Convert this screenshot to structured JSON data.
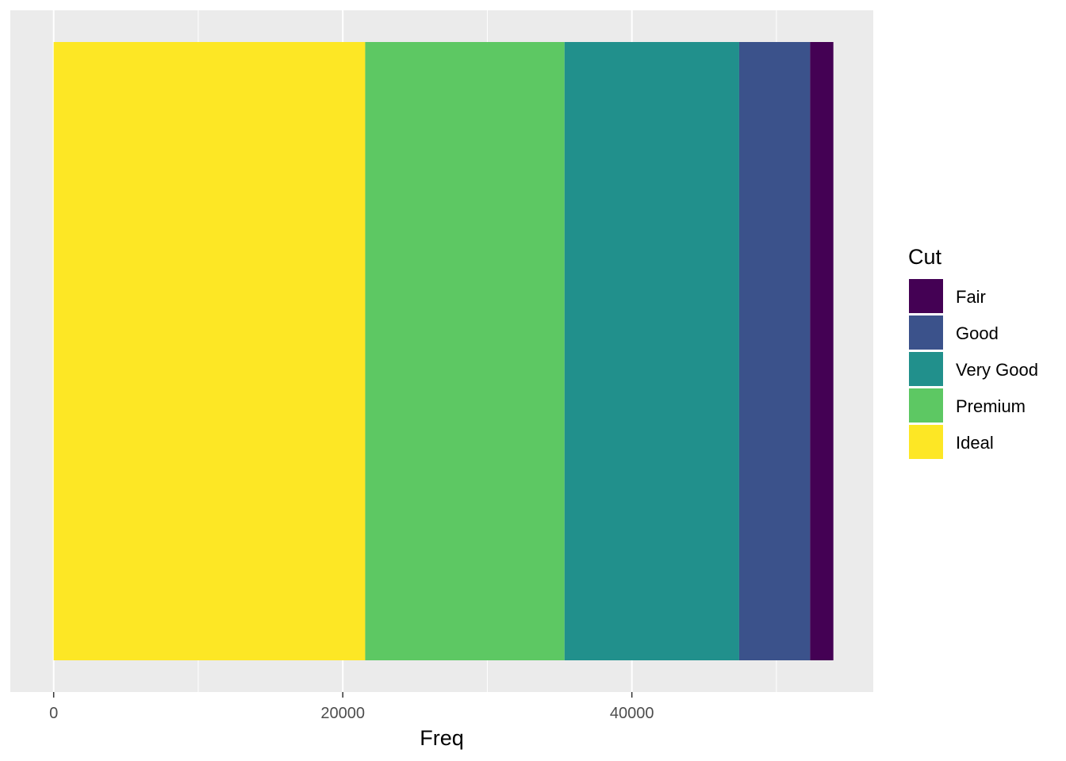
{
  "chart_data": {
    "type": "bar",
    "orientation": "horizontal-stacked",
    "xlabel": "Freq",
    "ylabel": "",
    "xlim": [
      -3000,
      56700
    ],
    "x_ticks": [
      0,
      20000,
      40000
    ],
    "x_tick_labels": [
      "0",
      "20000",
      "40000"
    ],
    "x_minor_ticks": [
      10000,
      30000,
      50000
    ],
    "grid": true,
    "legend": {
      "title": "Cut",
      "placement": "right"
    },
    "series": [
      {
        "name": "Fair",
        "value": 1610,
        "color": "#440154"
      },
      {
        "name": "Good",
        "value": 4906,
        "color": "#3B528B"
      },
      {
        "name": "Very Good",
        "value": 12082,
        "color": "#21908C"
      },
      {
        "name": "Premium",
        "value": 13791,
        "color": "#5DC863"
      },
      {
        "name": "Ideal",
        "value": 21551,
        "color": "#FDE725"
      }
    ],
    "stack_order_from_zero": [
      "Ideal",
      "Premium",
      "Very Good",
      "Good",
      "Fair"
    ],
    "panel_background": "#EBEBEB",
    "grid_color": "#FFFFFF"
  }
}
